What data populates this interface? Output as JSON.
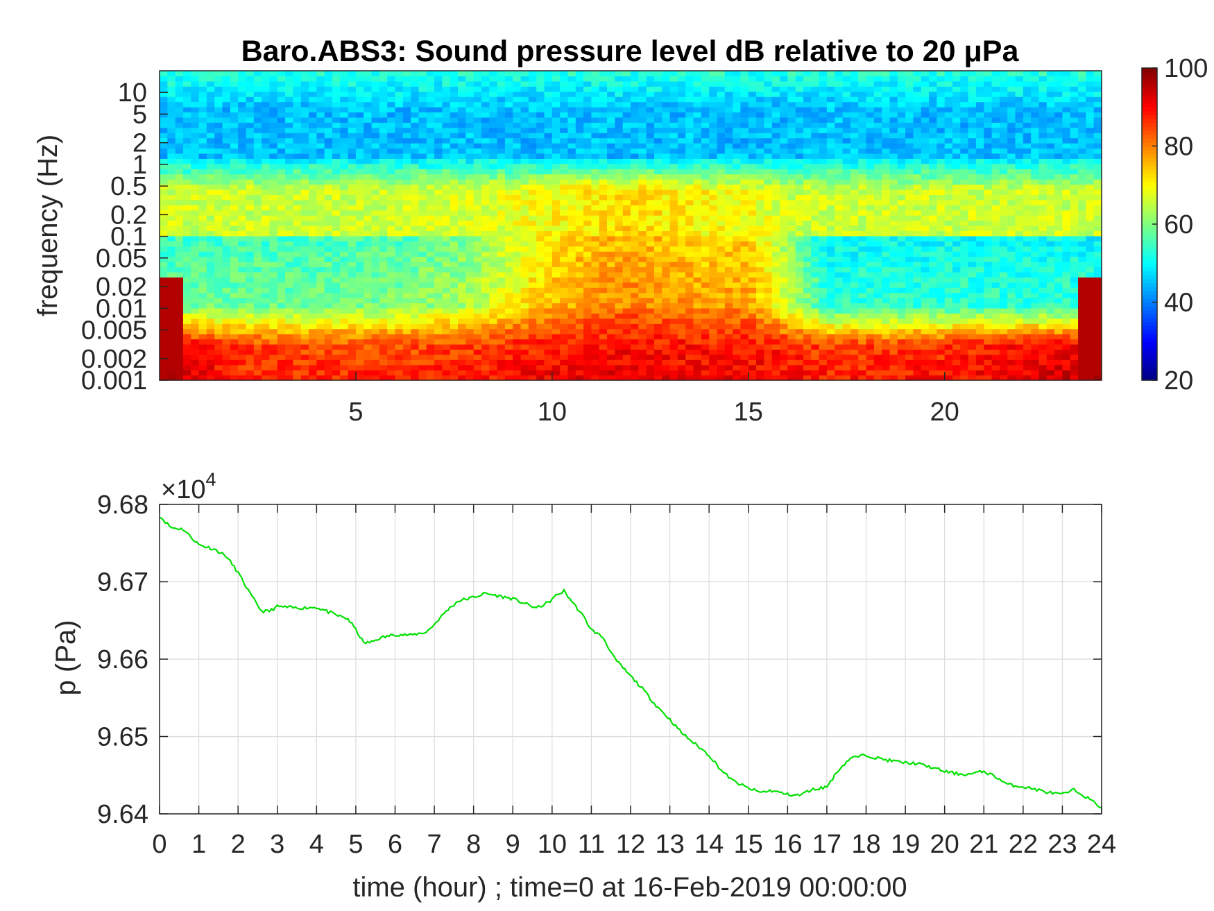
{
  "chart_data": [
    {
      "type": "heatmap",
      "title": "Baro.ABS3: Sound pressure level dB relative to 20 μPa",
      "ylabel": "frequency (Hz)",
      "y_scale": "log",
      "y_ticks": [
        "10",
        "5",
        "2",
        "1",
        "0.5",
        "0.2",
        "0.1",
        "0.05",
        "0.02",
        "0.01",
        "0.005",
        "0.002",
        "0.001"
      ],
      "y_tick_values": [
        10,
        5,
        2,
        1,
        0.5,
        0.2,
        0.1,
        0.05,
        0.02,
        0.01,
        0.005,
        0.002,
        0.001
      ],
      "ylim": [
        0.001,
        20
      ],
      "x_ticks": [
        "5",
        "10",
        "15",
        "20"
      ],
      "x_tick_values": [
        5,
        10,
        15,
        20
      ],
      "xlim": [
        0,
        24
      ],
      "colormap": "jet",
      "colorbar": {
        "ticks": [
          "100",
          "80",
          "60",
          "40",
          "20"
        ],
        "tick_values": [
          100,
          80,
          60,
          40,
          20
        ],
        "range": [
          20,
          100
        ]
      },
      "level_by_time_hour": [
        {
          "t": 0,
          "low_freq_db": 92,
          "mid_freq_db": 55,
          "upper_band_db": 66
        },
        {
          "t": 2,
          "low_freq_db": 85,
          "mid_freq_db": 55,
          "upper_band_db": 66
        },
        {
          "t": 4,
          "low_freq_db": 84,
          "mid_freq_db": 55,
          "upper_band_db": 66
        },
        {
          "t": 6,
          "low_freq_db": 84,
          "mid_freq_db": 56,
          "upper_band_db": 66
        },
        {
          "t": 8,
          "low_freq_db": 85,
          "mid_freq_db": 60,
          "upper_band_db": 67
        },
        {
          "t": 10,
          "low_freq_db": 88,
          "mid_freq_db": 72,
          "upper_band_db": 70
        },
        {
          "t": 12,
          "low_freq_db": 89,
          "mid_freq_db": 76,
          "upper_band_db": 73
        },
        {
          "t": 14,
          "low_freq_db": 88,
          "mid_freq_db": 73,
          "upper_band_db": 70
        },
        {
          "t": 15,
          "low_freq_db": 88,
          "mid_freq_db": 74,
          "upper_band_db": 70
        },
        {
          "t": 16,
          "low_freq_db": 87,
          "mid_freq_db": 62,
          "upper_band_db": 66
        },
        {
          "t": 17,
          "low_freq_db": 85,
          "mid_freq_db": 50,
          "upper_band_db": 66
        },
        {
          "t": 20,
          "low_freq_db": 86,
          "mid_freq_db": 50,
          "upper_band_db": 66
        },
        {
          "t": 24,
          "low_freq_db": 92,
          "mid_freq_db": 50,
          "upper_band_db": 66
        }
      ]
    },
    {
      "type": "line",
      "xlabel": "time (hour) ; time=0 at 16-Feb-2019 00:00:00",
      "ylabel": "p (Pa)",
      "y_exponent_label": "×10",
      "y_exponent": "4",
      "xlim": [
        0,
        24
      ],
      "ylim": [
        9.64,
        9.68
      ],
      "x_ticks": [
        "0",
        "1",
        "2",
        "3",
        "4",
        "5",
        "6",
        "7",
        "8",
        "9",
        "10",
        "11",
        "12",
        "13",
        "14",
        "15",
        "16",
        "17",
        "18",
        "19",
        "20",
        "21",
        "22",
        "23",
        "24"
      ],
      "y_ticks": [
        "9.64",
        "9.65",
        "9.66",
        "9.67",
        "9.68"
      ],
      "grid": true,
      "line_color": "#00e000",
      "series": [
        {
          "x": [
            0,
            0.3,
            0.6,
            1.0,
            1.4,
            1.7,
            2.0,
            2.3,
            2.6,
            2.8,
            3.0,
            3.5,
            4.0,
            4.2,
            4.5,
            4.8,
            5.0,
            5.2,
            5.4,
            5.6,
            6.0,
            6.4,
            6.8,
            7.0,
            7.3,
            7.6,
            8.0,
            8.3,
            8.6,
            9.0,
            9.3,
            9.6,
            9.9,
            10.1,
            10.3,
            10.5,
            10.8,
            11.0,
            11.3,
            11.6,
            12.0,
            12.3,
            12.6,
            13.0,
            13.3,
            13.6,
            14.0,
            14.3,
            14.6,
            15.0,
            15.3,
            15.6,
            16.0,
            16.3,
            16.6,
            17.0,
            17.3,
            17.6,
            18.0,
            18.3,
            18.6,
            19.0,
            19.3,
            19.6,
            20.0,
            20.3,
            20.6,
            21.0,
            21.3,
            21.6,
            22.0,
            22.3,
            22.6,
            23.0,
            23.3,
            23.6,
            24.0
          ],
          "y": [
            9.6785,
            9.677,
            9.6768,
            9.6748,
            9.6742,
            9.6733,
            9.6712,
            9.6685,
            9.6662,
            9.6662,
            9.6668,
            9.6666,
            9.6667,
            9.6663,
            9.6657,
            9.6652,
            9.6638,
            9.6621,
            9.6622,
            9.6627,
            9.6632,
            9.6631,
            9.6635,
            9.6645,
            9.6662,
            9.6675,
            9.668,
            9.6685,
            9.6682,
            9.6678,
            9.6672,
            9.6666,
            9.6673,
            9.6682,
            9.6688,
            9.6675,
            9.6655,
            9.6638,
            9.6628,
            9.66,
            9.6578,
            9.6562,
            9.6543,
            9.6522,
            9.6505,
            9.6492,
            9.6476,
            9.6457,
            9.6443,
            9.6433,
            9.6428,
            9.643,
            9.6425,
            9.6424,
            9.6431,
            9.6435,
            9.6457,
            9.6472,
            9.6476,
            9.6472,
            9.6469,
            9.6466,
            9.6465,
            9.6461,
            9.6455,
            9.6452,
            9.6451,
            9.6455,
            9.6448,
            9.6438,
            9.6435,
            9.6432,
            9.6428,
            9.6425,
            9.6431,
            9.6422,
            9.6408
          ]
        }
      ]
    }
  ]
}
